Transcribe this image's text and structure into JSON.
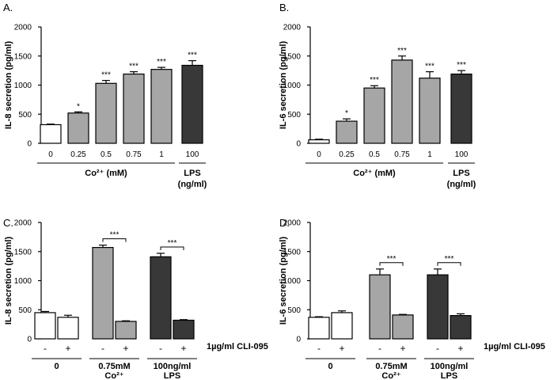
{
  "chart_data": [
    {
      "type": "bar",
      "panel": "A.",
      "ylabel": "IL-8 secretion (pg/ml)",
      "ylim": [
        0,
        2000
      ],
      "yticks": [
        0,
        500,
        1000,
        1500,
        2000
      ],
      "categories": [
        "0",
        "0.25",
        "0.5",
        "0.75",
        "1",
        "100"
      ],
      "values": [
        320,
        520,
        1030,
        1190,
        1270,
        1340
      ],
      "errors": [
        10,
        20,
        50,
        40,
        35,
        80
      ],
      "fills": [
        "white",
        "gray",
        "gray",
        "gray",
        "gray",
        "dark"
      ],
      "significance": [
        "",
        "*",
        "***",
        "***",
        "***",
        "***"
      ],
      "groups": [
        {
          "label": "Co²⁺ (mM)",
          "from": 0,
          "to": 4
        },
        {
          "label": "LPS",
          "label2": "(ng/ml)",
          "from": 5,
          "to": 5
        }
      ]
    },
    {
      "type": "bar",
      "panel": "B.",
      "ylabel": "IL-6 secretion (pg/ml)",
      "ylim": [
        0,
        2000
      ],
      "yticks": [
        0,
        500,
        1000,
        1500,
        2000
      ],
      "categories": [
        "0",
        "0.25",
        "0.5",
        "0.75",
        "1",
        "100"
      ],
      "values": [
        60,
        380,
        950,
        1430,
        1120,
        1190
      ],
      "errors": [
        10,
        40,
        40,
        70,
        110,
        60
      ],
      "fills": [
        "white",
        "gray",
        "gray",
        "gray",
        "gray",
        "dark"
      ],
      "significance": [
        "",
        "*",
        "***",
        "***",
        "***",
        "***"
      ],
      "groups": [
        {
          "label": "Co²⁺ (mM)",
          "from": 0,
          "to": 4
        },
        {
          "label": "LPS",
          "label2": "(ng/ml)",
          "from": 5,
          "to": 5
        }
      ]
    },
    {
      "type": "bar",
      "panel": "C.",
      "ylabel": "IL-8 secretion (pg/ml)",
      "ylim": [
        0,
        2000
      ],
      "yticks": [
        0,
        500,
        1000,
        1500,
        2000
      ],
      "categories": [
        "-",
        "+",
        "-",
        "+",
        "-",
        "+"
      ],
      "values": [
        450,
        370,
        1570,
        300,
        1410,
        320
      ],
      "errors": [
        20,
        35,
        40,
        10,
        60,
        10
      ],
      "fills": [
        "white",
        "white",
        "gray",
        "gray",
        "dark",
        "dark"
      ],
      "treatment_label": "1µg/ml CLI-095",
      "brackets": [
        {
          "from": 2,
          "to": 3,
          "label": "***"
        },
        {
          "from": 4,
          "to": 5,
          "label": "***"
        }
      ],
      "groups": [
        {
          "label": "0",
          "from": 0,
          "to": 1
        },
        {
          "label": "0.75mM",
          "label2": "Co²⁺",
          "from": 2,
          "to": 3
        },
        {
          "label": "100ng/ml",
          "label2": "LPS",
          "from": 4,
          "to": 5
        }
      ]
    },
    {
      "type": "bar",
      "panel": "D.",
      "ylabel": "IL-6 secretion (pg/ml)",
      "ylim": [
        0,
        2000
      ],
      "yticks": [
        0,
        500,
        1000,
        1500,
        2000
      ],
      "categories": [
        "-",
        "+",
        "-",
        "+",
        "-",
        "+"
      ],
      "values": [
        370,
        450,
        1100,
        410,
        1100,
        400
      ],
      "errors": [
        10,
        30,
        100,
        10,
        100,
        30
      ],
      "fills": [
        "white",
        "white",
        "gray",
        "gray",
        "dark",
        "dark"
      ],
      "treatment_label": "1µg/ml CLI-095",
      "brackets": [
        {
          "from": 2,
          "to": 3,
          "label": "***"
        },
        {
          "from": 4,
          "to": 5,
          "label": "***"
        }
      ],
      "groups": [
        {
          "label": "0",
          "from": 0,
          "to": 1
        },
        {
          "label": "0.75mM",
          "label2": "Co²⁺",
          "from": 2,
          "to": 3
        },
        {
          "label": "100ng/ml",
          "label2": "LPS",
          "from": 4,
          "to": 5
        }
      ]
    }
  ],
  "colors": {
    "white": "#ffffff",
    "gray": "#a6a6a6",
    "dark": "#383838",
    "stroke": "#000000"
  }
}
